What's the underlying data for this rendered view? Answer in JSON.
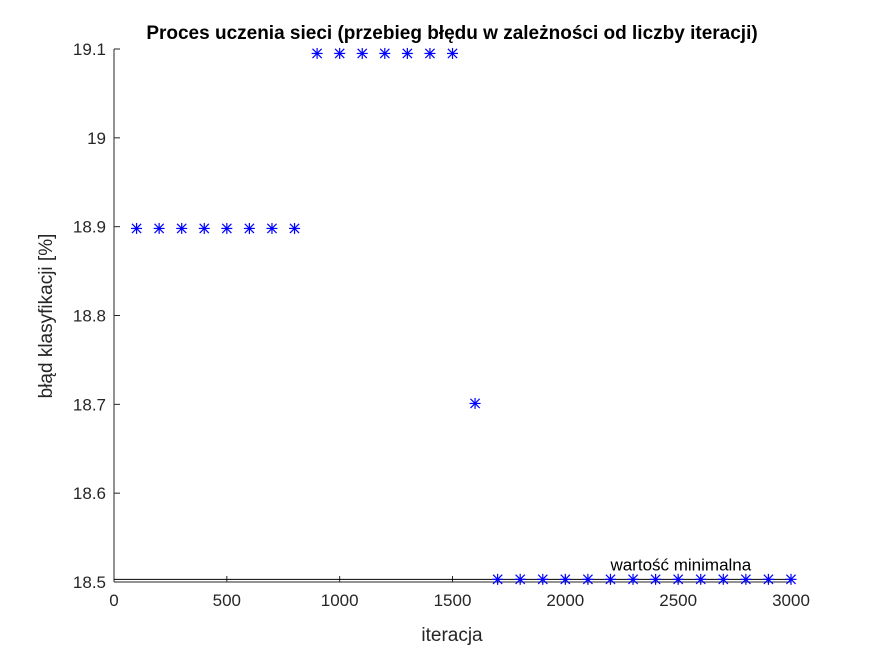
{
  "chart_data": {
    "type": "scatter",
    "title": "Proces uczenia sieci (przebieg błędu w zależności od liczby iteracji)",
    "xlabel": "iteracja",
    "ylabel": "błąd klasyfikacji [%]",
    "xlim": [
      0,
      3000
    ],
    "ylim": [
      18.5,
      19.1
    ],
    "xticks": [
      0,
      500,
      1000,
      1500,
      2000,
      2500,
      3000
    ],
    "yticks": [
      18.5,
      18.6,
      18.7,
      18.8,
      18.9,
      19,
      19.1
    ],
    "xtick_labels": [
      "0",
      "500",
      "1000",
      "1500",
      "2000",
      "2500",
      "3000"
    ],
    "ytick_labels": [
      "18.5",
      "18.6",
      "18.7",
      "18.8",
      "18.9",
      "19",
      "19.1"
    ],
    "grid": false,
    "marker": "asterisk",
    "marker_color": "#0000ff",
    "points": [
      {
        "x": 100,
        "y": 18.898
      },
      {
        "x": 200,
        "y": 18.898
      },
      {
        "x": 300,
        "y": 18.898
      },
      {
        "x": 400,
        "y": 18.898
      },
      {
        "x": 500,
        "y": 18.898
      },
      {
        "x": 600,
        "y": 18.898
      },
      {
        "x": 700,
        "y": 18.898
      },
      {
        "x": 800,
        "y": 18.898
      },
      {
        "x": 900,
        "y": 19.095
      },
      {
        "x": 1000,
        "y": 19.095
      },
      {
        "x": 1100,
        "y": 19.095
      },
      {
        "x": 1200,
        "y": 19.095
      },
      {
        "x": 1300,
        "y": 19.095
      },
      {
        "x": 1400,
        "y": 19.095
      },
      {
        "x": 1500,
        "y": 19.095
      },
      {
        "x": 1600,
        "y": 18.701
      },
      {
        "x": 1700,
        "y": 18.503
      },
      {
        "x": 1800,
        "y": 18.503
      },
      {
        "x": 1900,
        "y": 18.503
      },
      {
        "x": 2000,
        "y": 18.503
      },
      {
        "x": 2100,
        "y": 18.503
      },
      {
        "x": 2200,
        "y": 18.503
      },
      {
        "x": 2300,
        "y": 18.503
      },
      {
        "x": 2400,
        "y": 18.503
      },
      {
        "x": 2500,
        "y": 18.503
      },
      {
        "x": 2600,
        "y": 18.503
      },
      {
        "x": 2700,
        "y": 18.503
      },
      {
        "x": 2800,
        "y": 18.503
      },
      {
        "x": 2900,
        "y": 18.503
      },
      {
        "x": 3000,
        "y": 18.503
      }
    ],
    "reference_line": {
      "y": 18.503,
      "label": "wartość minimalna",
      "color": "#000000",
      "label_x": 2200
    }
  }
}
